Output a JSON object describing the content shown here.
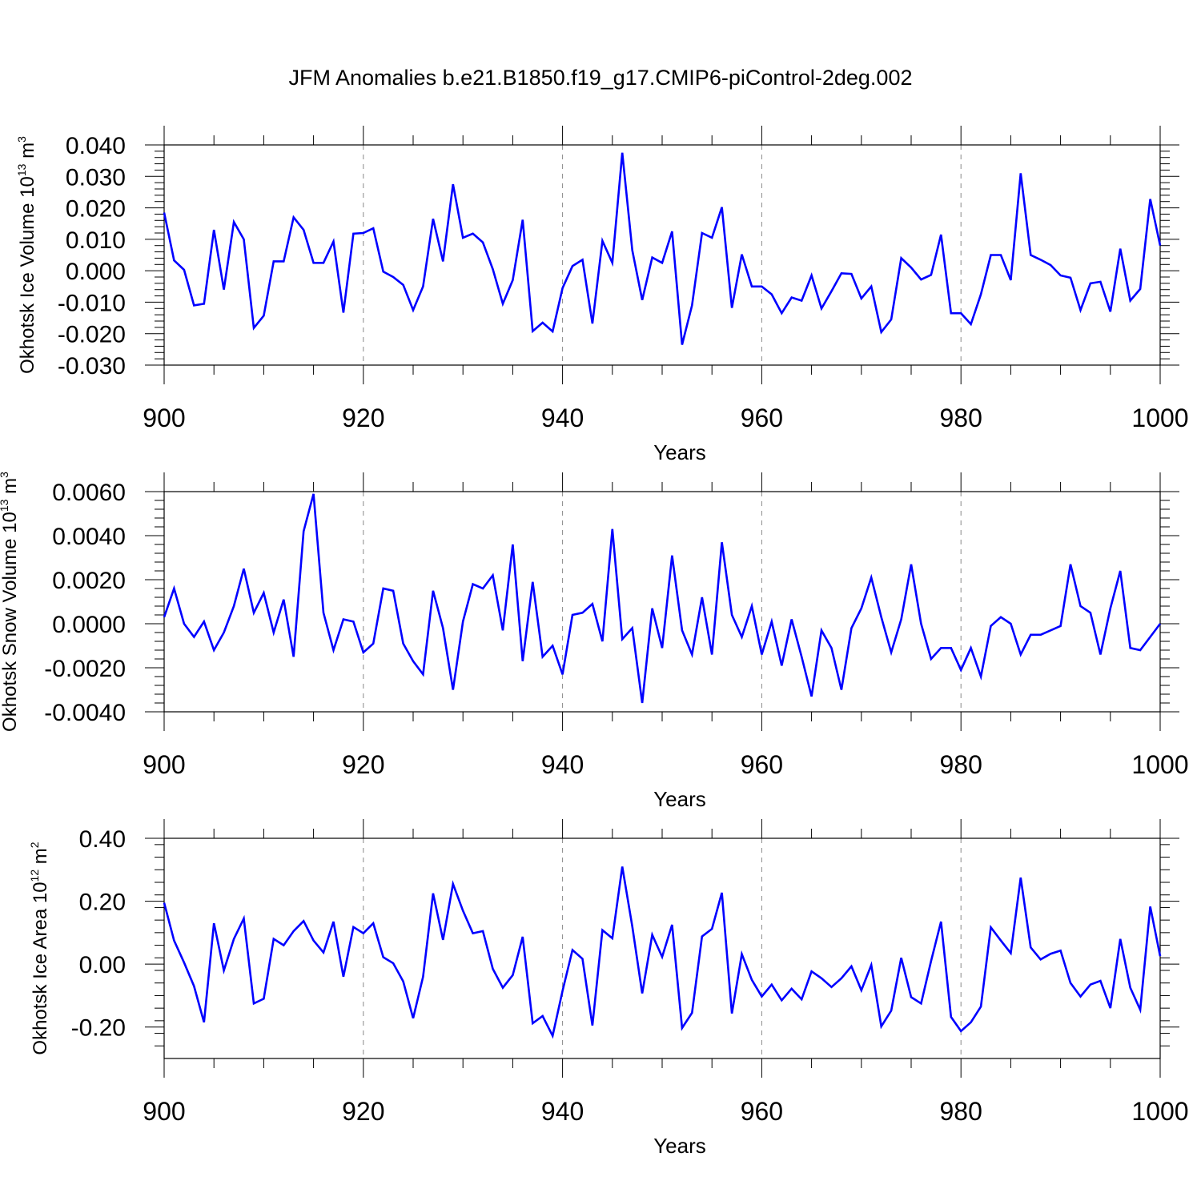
{
  "title": "JFM Anomalies b.e21.B1850.f19_g17.CMIP6-piControl-2deg.002",
  "colors": {
    "line": "#0000ff",
    "axes": "#000000",
    "grid": "#888888"
  },
  "chart_data": [
    {
      "type": "line",
      "xlabel": "Years",
      "ylabel": "Okhotsk Ice Volume 10",
      "ylabel_exp": "13",
      "ylabel_unit": "m",
      "ylabel_unit_exp": "3",
      "xlim": [
        900,
        1000
      ],
      "ylim": [
        -0.03,
        0.04
      ],
      "x_ticks": [
        900,
        920,
        940,
        960,
        980,
        1000
      ],
      "x_tick_labels": [
        "900",
        "920",
        "940",
        "960",
        "980",
        "1000"
      ],
      "y_ticks": [
        -0.03,
        -0.02,
        -0.01,
        0.0,
        0.01,
        0.02,
        0.03,
        0.04
      ],
      "y_tick_labels": [
        "-0.030",
        "-0.020",
        "-0.010",
        "0.000",
        "0.010",
        "0.020",
        "0.030",
        "0.040"
      ],
      "y_minor_step": 0.002,
      "x_minor_step": 5,
      "grid_x": [
        920,
        940,
        960,
        980
      ],
      "x_start": 900,
      "series": [
        {
          "name": "Okhotsk Ice Volume",
          "values": [
            0.0185,
            0.0033,
            0.0003,
            -0.011,
            -0.0105,
            0.013,
            -0.006,
            0.0155,
            0.01,
            -0.0182,
            -0.0143,
            0.003,
            0.003,
            0.017,
            0.013,
            0.0025,
            0.0025,
            0.0093,
            -0.0133,
            0.0118,
            0.012,
            0.0135,
            -0.0003,
            -0.002,
            -0.0045,
            -0.0125,
            -0.005,
            0.0165,
            0.003,
            0.0275,
            0.0105,
            0.0118,
            0.009,
            0.0005,
            -0.0105,
            -0.003,
            0.0162,
            -0.0192,
            -0.0165,
            -0.0193,
            -0.0055,
            0.0015,
            0.0035,
            -0.0168,
            0.0095,
            0.0025,
            0.0375,
            0.0065,
            -0.0093,
            0.0042,
            0.0025,
            0.0125,
            -0.0235,
            -0.011,
            0.012,
            0.0105,
            0.0202,
            -0.0118,
            0.0052,
            -0.005,
            -0.005,
            -0.0075,
            -0.0135,
            -0.0085,
            -0.0095,
            -0.0015,
            -0.012,
            -0.0065,
            -0.0008,
            -0.001,
            -0.0088,
            -0.005,
            -0.0195,
            -0.0155,
            0.004,
            0.001,
            -0.0028,
            -0.0013,
            0.0115,
            -0.0135,
            -0.0135,
            -0.017,
            -0.0075,
            0.005,
            0.005,
            -0.003,
            0.031,
            0.005,
            0.0035,
            0.0018,
            -0.0015,
            -0.0022,
            -0.0125,
            -0.004,
            -0.0035,
            -0.013,
            0.007,
            -0.0095,
            -0.0058,
            0.0228,
            0.008
          ]
        }
      ]
    },
    {
      "type": "line",
      "xlabel": "Years",
      "ylabel": "Okhotsk Snow Volume 10",
      "ylabel_exp": "13",
      "ylabel_unit": "m",
      "ylabel_unit_exp": "3",
      "xlim": [
        900,
        1000
      ],
      "ylim": [
        -0.004,
        0.006
      ],
      "x_ticks": [
        900,
        920,
        940,
        960,
        980,
        1000
      ],
      "x_tick_labels": [
        "900",
        "920",
        "940",
        "960",
        "980",
        "1000"
      ],
      "y_ticks": [
        -0.004,
        -0.002,
        0.0,
        0.002,
        0.004,
        0.006
      ],
      "y_tick_labels": [
        "-0.0040",
        "-0.0020",
        "0.0000",
        "0.0020",
        "0.0040",
        "0.0060"
      ],
      "y_minor_step": 0.0004,
      "x_minor_step": 5,
      "grid_x": [
        920,
        940,
        960,
        980
      ],
      "x_start": 900,
      "series": [
        {
          "name": "Okhotsk Snow Volume",
          "values": [
            0.0003,
            0.0016,
            0.0,
            -0.0006,
            0.0001,
            -0.0012,
            -0.0004,
            0.0008,
            0.0025,
            0.0005,
            0.0014,
            -0.0004,
            0.0011,
            -0.0015,
            0.0042,
            0.0059,
            0.0005,
            -0.0012,
            0.0002,
            0.0001,
            -0.0013,
            -0.0009,
            0.0016,
            0.0015,
            -0.0009,
            -0.0017,
            -0.0023,
            0.0015,
            -0.0002,
            -0.003,
            0.0001,
            0.0018,
            0.0016,
            0.0022,
            -0.0003,
            0.0036,
            -0.0017,
            0.0019,
            -0.0015,
            -0.001,
            -0.0023,
            0.0004,
            0.0005,
            0.0009,
            -0.0008,
            0.0043,
            -0.0007,
            -0.0002,
            -0.0036,
            0.0007,
            -0.0011,
            0.0031,
            -0.0003,
            -0.0014,
            0.0012,
            -0.0014,
            0.0037,
            0.0004,
            -0.0006,
            0.0008,
            -0.0014,
            0.0001,
            -0.0019,
            0.0002,
            -0.0015,
            -0.0033,
            -0.0003,
            -0.0011,
            -0.003,
            -0.0002,
            0.0007,
            0.0021,
            0.0003,
            -0.0013,
            0.0002,
            0.0027,
            0.0,
            -0.0016,
            -0.0011,
            -0.0011,
            -0.0021,
            -0.0011,
            -0.0024,
            -0.0001,
            0.0003,
            0.0,
            -0.0014,
            -0.0005,
            -0.0005,
            -0.0003,
            -0.0001,
            0.0027,
            0.0008,
            0.0005,
            -0.0014,
            0.0007,
            0.0024,
            -0.0011,
            -0.0012,
            -0.0006,
            0.0
          ]
        }
      ]
    },
    {
      "type": "line",
      "xlabel": "Years",
      "ylabel": "Okhotsk Ice Area 10",
      "ylabel_exp": "12",
      "ylabel_unit": "m",
      "ylabel_unit_exp": "2",
      "xlim": [
        900,
        1000
      ],
      "ylim": [
        -0.3,
        0.4
      ],
      "x_ticks": [
        900,
        920,
        940,
        960,
        980,
        1000
      ],
      "x_tick_labels": [
        "900",
        "920",
        "940",
        "960",
        "980",
        "1000"
      ],
      "y_ticks": [
        -0.2,
        0.0,
        0.2,
        0.4
      ],
      "y_tick_labels": [
        "-0.20",
        "0.00",
        "0.20",
        "0.40"
      ],
      "y_minor_step": 0.04,
      "x_minor_step": 5,
      "grid_x": [
        920,
        940,
        960,
        980
      ],
      "x_start": 900,
      "series": [
        {
          "name": "Okhotsk Ice Area",
          "values": [
            0.195,
            0.075,
            0.005,
            -0.07,
            -0.185,
            0.13,
            -0.02,
            0.08,
            0.145,
            -0.125,
            -0.11,
            0.08,
            0.06,
            0.105,
            0.137,
            0.075,
            0.037,
            0.135,
            -0.04,
            0.118,
            0.098,
            0.13,
            0.022,
            0.003,
            -0.055,
            -0.172,
            -0.04,
            0.225,
            0.077,
            0.255,
            0.17,
            0.098,
            0.105,
            -0.015,
            -0.075,
            -0.035,
            0.087,
            -0.188,
            -0.165,
            -0.228,
            -0.085,
            0.045,
            0.017,
            -0.195,
            0.108,
            0.082,
            0.31,
            0.12,
            -0.093,
            0.093,
            0.023,
            0.125,
            -0.203,
            -0.155,
            0.088,
            0.112,
            0.227,
            -0.157,
            0.032,
            -0.05,
            -0.103,
            -0.065,
            -0.115,
            -0.078,
            -0.112,
            -0.023,
            -0.045,
            -0.073,
            -0.045,
            -0.007,
            -0.083,
            -0.003,
            -0.198,
            -0.148,
            0.02,
            -0.105,
            -0.125,
            0.01,
            0.135,
            -0.168,
            -0.213,
            -0.185,
            -0.135,
            0.117,
            0.075,
            0.035,
            0.275,
            0.053,
            0.015,
            0.033,
            0.043,
            -0.06,
            -0.103,
            -0.065,
            -0.053,
            -0.14,
            0.08,
            -0.075,
            -0.145,
            0.183,
            0.025
          ]
        }
      ]
    }
  ]
}
